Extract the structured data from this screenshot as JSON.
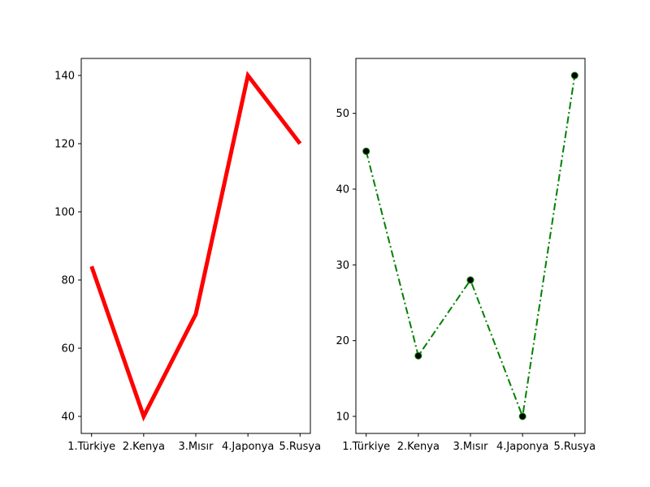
{
  "chart_data": [
    {
      "type": "line",
      "categories": [
        "1.Türkiye",
        "2.Kenya",
        "3.Mısır",
        "4.Japonya",
        "5.Rusya"
      ],
      "values": [
        84,
        40,
        70,
        140,
        120
      ],
      "yticks": [
        40,
        60,
        80,
        100,
        120,
        140
      ],
      "ylim": [
        35,
        145
      ],
      "style": {
        "color": "#ff0000",
        "line": "solid",
        "markers": false
      }
    },
    {
      "type": "line",
      "categories": [
        "1.Türkiye",
        "2.Kenya",
        "3.Mısır",
        "4.Japonya",
        "5.Rusya"
      ],
      "values": [
        45,
        18,
        28,
        10,
        55
      ],
      "yticks": [
        10,
        20,
        30,
        40,
        50
      ],
      "ylim": [
        7.75,
        57.25
      ],
      "style": {
        "color": "#008000",
        "line": "dashdot",
        "markers": true,
        "marker_face": "#000000"
      }
    }
  ]
}
